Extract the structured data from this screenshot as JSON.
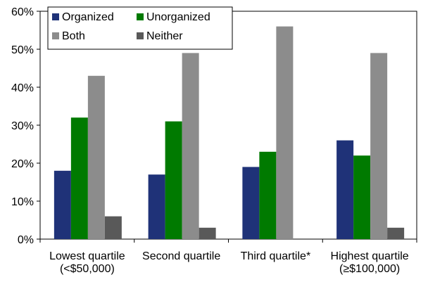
{
  "chart_data": {
    "type": "bar",
    "title": "",
    "xlabel": "",
    "ylabel": "",
    "ylim": [
      0,
      60
    ],
    "yticks": [
      0,
      10,
      20,
      30,
      40,
      50,
      60
    ],
    "ytick_labels": [
      "0%",
      "10%",
      "20%",
      "30%",
      "40%",
      "50%",
      "60%"
    ],
    "grid": false,
    "legend_position": "top-left",
    "categories": [
      [
        "Lowest quartile",
        "(<$50,000)"
      ],
      [
        "Second quartile"
      ],
      [
        "Third quartile*"
      ],
      [
        "Highest quartile",
        "(≥$100,000)"
      ]
    ],
    "series": [
      {
        "name": "Organized",
        "color": "#1f3278",
        "values": [
          18,
          17,
          19,
          26
        ]
      },
      {
        "name": "Unorganized",
        "color": "#007a00",
        "values": [
          32,
          31,
          23,
          22
        ]
      },
      {
        "name": "Both",
        "color": "#8c8c8c",
        "values": [
          43,
          49,
          56,
          49
        ]
      },
      {
        "name": "Neither",
        "color": "#595959",
        "values": [
          6,
          3,
          0,
          3
        ]
      }
    ]
  }
}
